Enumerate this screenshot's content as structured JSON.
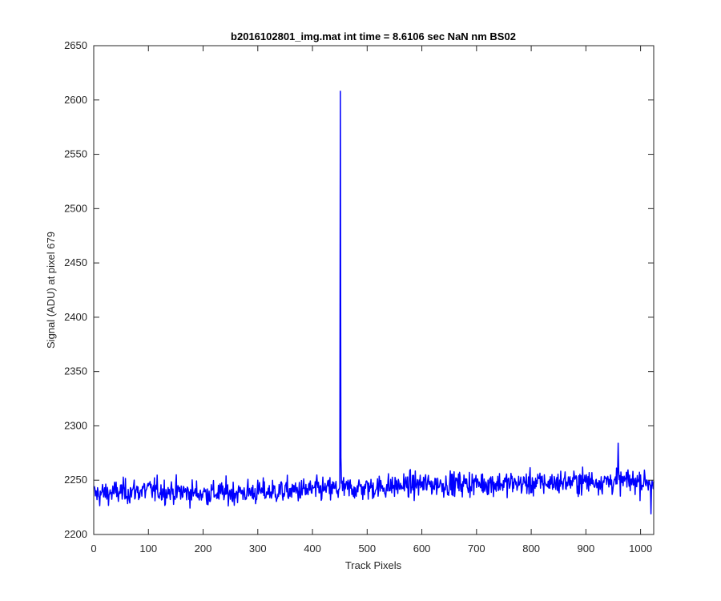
{
  "chart_data": {
    "type": "line",
    "title": "b2016102801_img.mat int time = 8.6106 sec  NaN nm BS02",
    "xlabel": "Track Pixels",
    "ylabel": "Signal (ADU) at pixel 679",
    "xlim": [
      0,
      1024
    ],
    "ylim": [
      2200,
      2650
    ],
    "xticks": [
      0,
      100,
      200,
      300,
      400,
      500,
      600,
      700,
      800,
      900,
      1000
    ],
    "yticks": [
      2200,
      2250,
      2300,
      2350,
      2400,
      2450,
      2500,
      2550,
      2600,
      2650
    ],
    "grid": false,
    "legend": "none",
    "series": [
      {
        "color": "#0000ff",
        "x_start": 1,
        "x_step": 1,
        "baseline": [
          [
            0,
            2237
          ],
          [
            100,
            2241
          ],
          [
            200,
            2238
          ],
          [
            300,
            2239
          ],
          [
            400,
            2241
          ],
          [
            500,
            2243
          ],
          [
            600,
            2246
          ],
          [
            700,
            2247
          ],
          [
            800,
            2247
          ],
          [
            900,
            2249
          ],
          [
            1024,
            2249
          ]
        ],
        "noise_amplitude": 9,
        "spike": {
          "x": 451,
          "y": 2608
        },
        "annotated_points": [
          [
            959,
            2284
          ],
          [
            452,
            2271
          ],
          [
            1019,
            2219
          ]
        ]
      }
    ]
  }
}
